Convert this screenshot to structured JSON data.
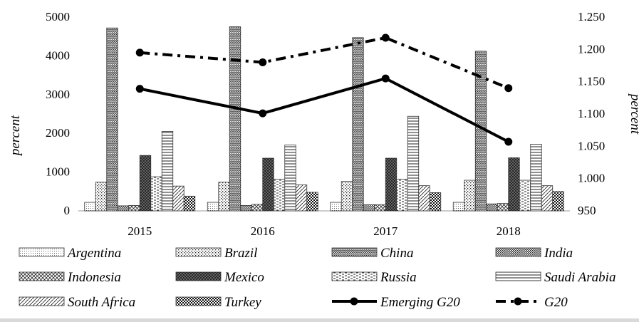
{
  "chart_data": {
    "type": "bar",
    "categories": [
      "2015",
      "2016",
      "2017",
      "2018"
    ],
    "y_left": {
      "label": "percent",
      "range": [
        0,
        5000
      ],
      "ticks": [
        "0",
        "1000",
        "2000",
        "3000",
        "4000",
        "5000"
      ]
    },
    "y_right": {
      "label": "percent",
      "range": [
        950,
        1250
      ],
      "ticks": [
        "950",
        "1.000",
        "1.050",
        "1.100",
        "1.150",
        "1.200",
        "1.250"
      ]
    },
    "series": [
      {
        "name": "Argentina",
        "type": "bar",
        "axis": "left",
        "pattern": "fine-dots",
        "values": [
          220,
          220,
          220,
          220
        ]
      },
      {
        "name": "Brazil",
        "type": "bar",
        "axis": "left",
        "pattern": "dots",
        "values": [
          740,
          740,
          760,
          790
        ]
      },
      {
        "name": "China",
        "type": "bar",
        "axis": "left",
        "pattern": "zigzag",
        "values": [
          4720,
          4750,
          4470,
          4120
        ]
      },
      {
        "name": "India",
        "type": "bar",
        "axis": "left",
        "pattern": "dense-dots",
        "values": [
          130,
          140,
          160,
          180
        ]
      },
      {
        "name": "Indonesia",
        "type": "bar",
        "axis": "left",
        "pattern": "diag-cross",
        "values": [
          140,
          170,
          160,
          190
        ]
      },
      {
        "name": "Mexico",
        "type": "bar",
        "axis": "left",
        "pattern": "dark-cross",
        "values": [
          1430,
          1360,
          1360,
          1370
        ]
      },
      {
        "name": "Russia",
        "type": "bar",
        "axis": "left",
        "pattern": "dashes",
        "values": [
          880,
          820,
          820,
          790
        ]
      },
      {
        "name": "Saudi Arabia",
        "type": "bar",
        "axis": "left",
        "pattern": "horizontal",
        "values": [
          2050,
          1700,
          2440,
          1720
        ]
      },
      {
        "name": "South Africa",
        "type": "bar",
        "axis": "left",
        "pattern": "diagonal",
        "values": [
          640,
          670,
          650,
          650
        ]
      },
      {
        "name": "Turkey",
        "type": "bar",
        "axis": "left",
        "pattern": "checker",
        "values": [
          380,
          480,
          470,
          500
        ]
      },
      {
        "name": "Emerging G20",
        "type": "line",
        "axis": "right",
        "style": "solid",
        "values": [
          1.139,
          1.101,
          1.155,
          1.057
        ]
      },
      {
        "name": "G20",
        "type": "line",
        "axis": "right",
        "style": "dash-dot",
        "values": [
          1.195,
          1.18,
          1.218,
          1.14
        ]
      }
    ],
    "grid": false,
    "legend_position": "bottom"
  }
}
